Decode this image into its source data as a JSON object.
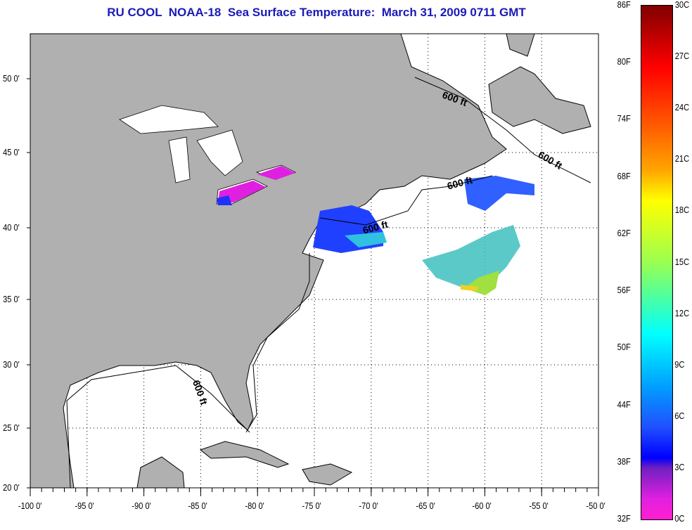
{
  "title": "RU COOL  NOAA-18  Sea Surface Temperature:  March 31, 2009 0711 GMT",
  "map": {
    "lat_labels": [
      "20 0'",
      "25 0'",
      "30 0'",
      "35 0'",
      "40 0'",
      "45 0'",
      "50 0'"
    ],
    "lon_labels": [
      "-100 0'",
      "-95 0'",
      "-90 0'",
      "-85 0'",
      "-80 0'",
      "-75 0'",
      "-70 0'",
      "-65 0'",
      "-60 0'",
      "-55 0'",
      "-50 0'"
    ],
    "contour_labels": [
      "600 ft",
      "600 ft",
      "600 ft",
      "600 ft",
      "600 ft"
    ],
    "land_color": "#b0b0b0",
    "ocean_color": "#ffffff"
  },
  "colorbar": {
    "f_labels": [
      "86F",
      "80F",
      "74F",
      "68F",
      "62F",
      "56F",
      "50F",
      "44F",
      "38F",
      "32F"
    ],
    "c_labels": [
      "30C",
      "27C",
      "24C",
      "21C",
      "18C",
      "15C",
      "12C",
      "9C",
      "6C",
      "3C",
      "0C"
    ]
  }
}
